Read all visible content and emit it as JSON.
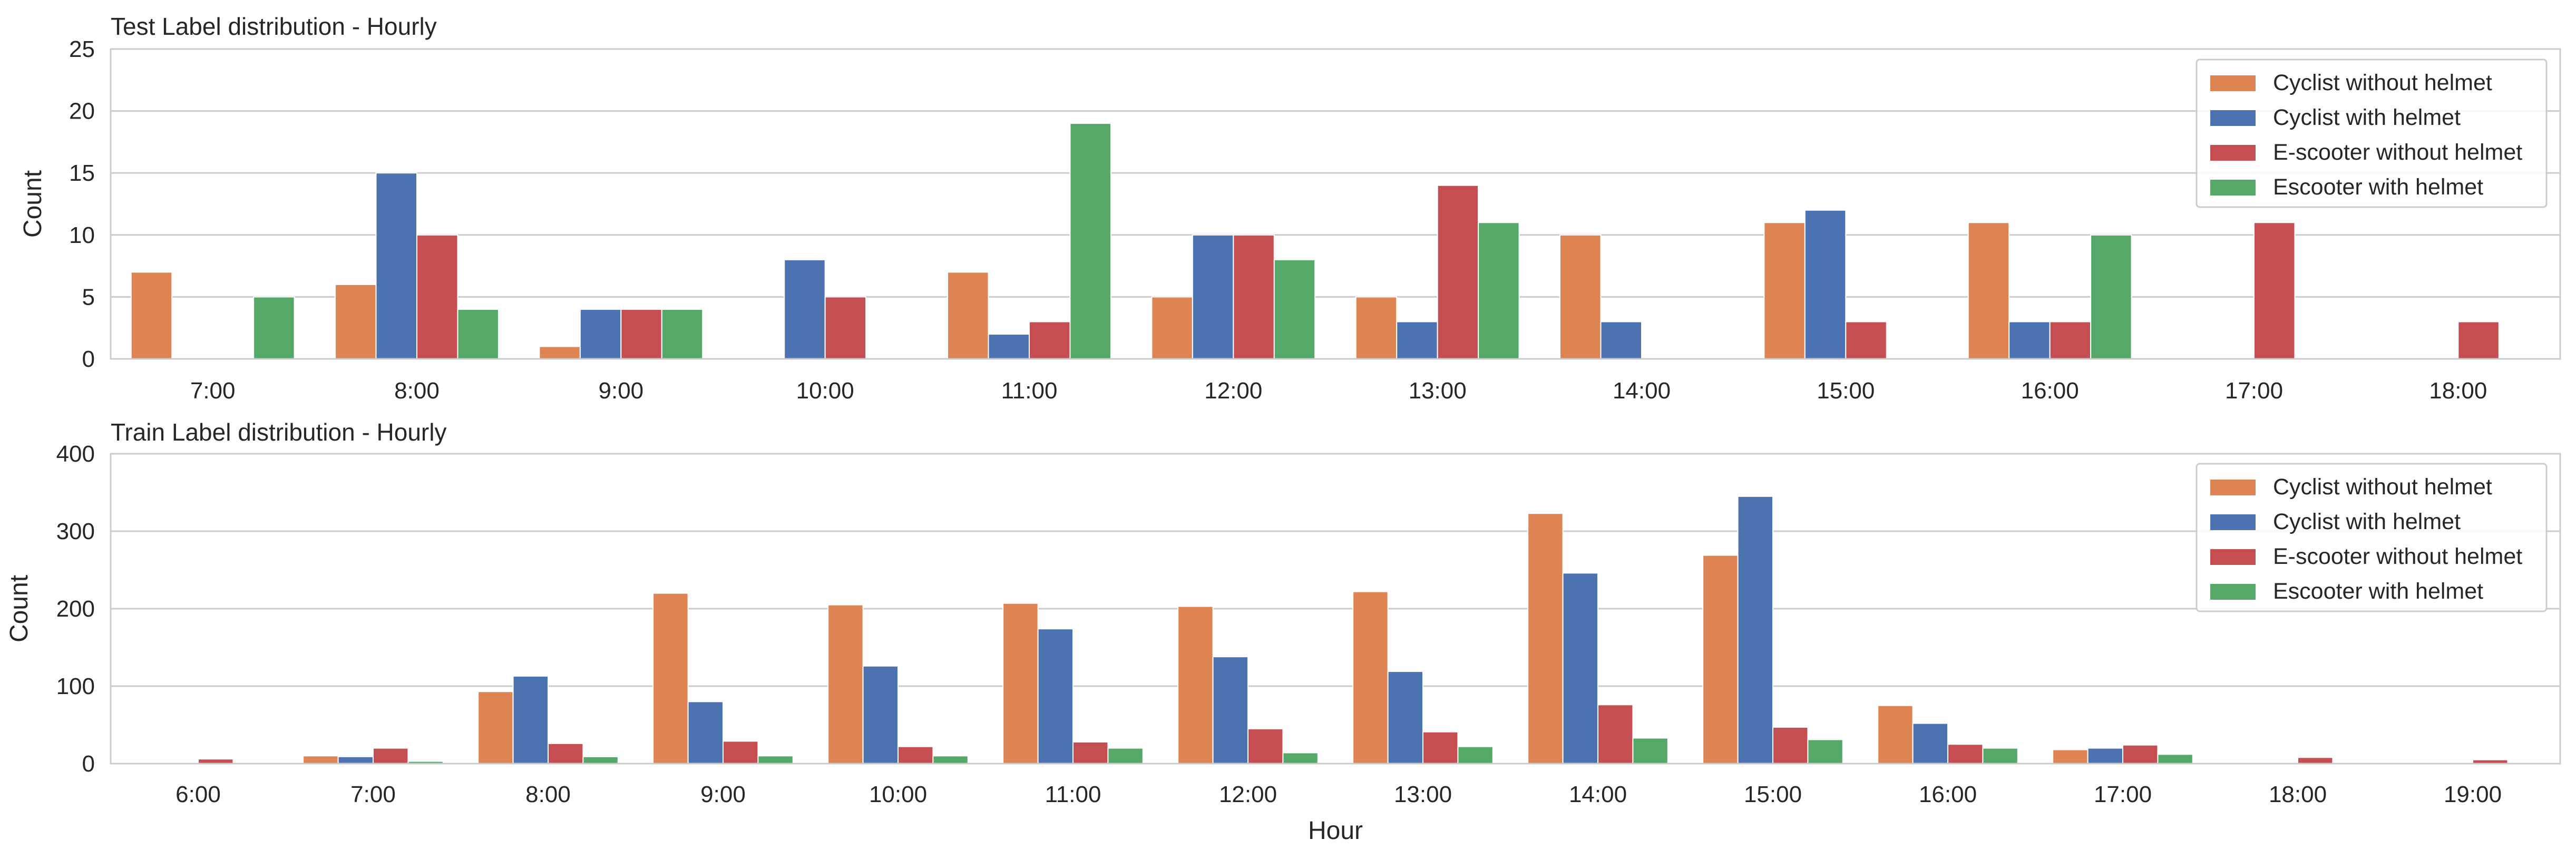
{
  "chart_data": [
    {
      "type": "bar",
      "title": "Test Label distribution - Hourly",
      "xlabel": "",
      "ylabel": "Count",
      "ylim": [
        0,
        25
      ],
      "yticks": [
        "0",
        "5",
        "10",
        "15",
        "20",
        "25"
      ],
      "grid": true,
      "legend_position": "top-right",
      "categories": [
        "7:00",
        "8:00",
        "9:00",
        "10:00",
        "11:00",
        "12:00",
        "13:00",
        "14:00",
        "15:00",
        "16:00",
        "17:00",
        "18:00"
      ],
      "series": [
        {
          "name": "Cyclist without helmet",
          "color": "#dd8452",
          "values": [
            7,
            6,
            1,
            0,
            7,
            5,
            5,
            10,
            11,
            11,
            0,
            0
          ]
        },
        {
          "name": "Cyclist with helmet",
          "color": "#4c72b0",
          "values": [
            0,
            15,
            4,
            8,
            2,
            10,
            3,
            3,
            12,
            3,
            0,
            0
          ]
        },
        {
          "name": "E-scooter without helmet",
          "color": "#c44e52",
          "values": [
            0,
            10,
            4,
            5,
            3,
            10,
            14,
            0,
            3,
            3,
            11,
            3
          ]
        },
        {
          "name": "Escooter with helmet",
          "color": "#55a868",
          "values": [
            5,
            4,
            4,
            0,
            19,
            8,
            11,
            0,
            0,
            10,
            0,
            0
          ]
        }
      ]
    },
    {
      "type": "bar",
      "title": "Train Label distribution - Hourly",
      "xlabel": "Hour",
      "ylabel": "Count",
      "ylim": [
        0,
        400
      ],
      "yticks": [
        "0",
        "100",
        "200",
        "300",
        "400"
      ],
      "grid": true,
      "legend_position": "top-right",
      "categories": [
        "6:00",
        "7:00",
        "8:00",
        "9:00",
        "10:00",
        "11:00",
        "12:00",
        "13:00",
        "14:00",
        "15:00",
        "16:00",
        "17:00",
        "18:00",
        "19:00"
      ],
      "series": [
        {
          "name": "Cyclist without helmet",
          "color": "#dd8452",
          "values": [
            0,
            10,
            93,
            220,
            205,
            207,
            203,
            222,
            323,
            269,
            75,
            18,
            0,
            0
          ]
        },
        {
          "name": "Cyclist with helmet",
          "color": "#4c72b0",
          "values": [
            0,
            9,
            113,
            80,
            126,
            174,
            138,
            119,
            246,
            345,
            52,
            20,
            0,
            0
          ]
        },
        {
          "name": "E-scooter without helmet",
          "color": "#c44e52",
          "values": [
            6,
            20,
            26,
            29,
            22,
            28,
            45,
            41,
            76,
            47,
            25,
            24,
            8,
            5
          ]
        },
        {
          "name": "Escooter with helmet",
          "color": "#55a868",
          "values": [
            0,
            3,
            9,
            10,
            10,
            20,
            14,
            22,
            33,
            31,
            20,
            12,
            0,
            0
          ]
        }
      ]
    }
  ]
}
